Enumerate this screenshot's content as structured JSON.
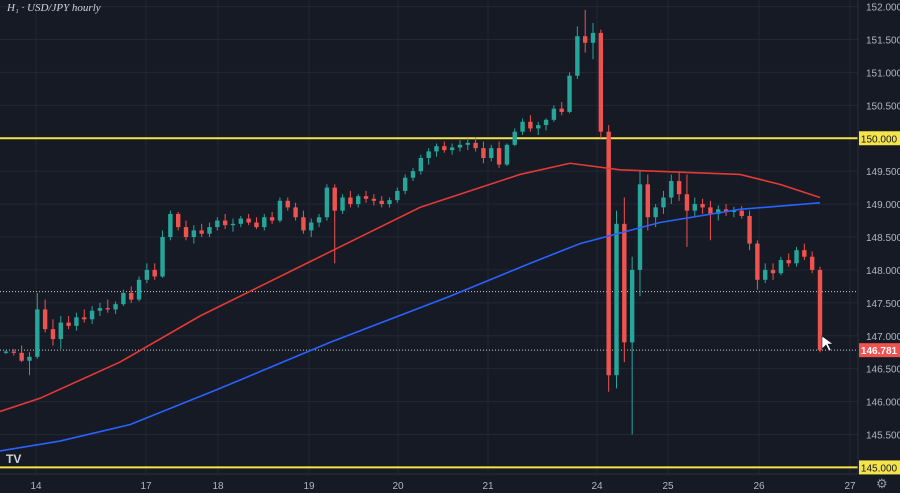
{
  "title": "H₁ · USD/JPY hourly",
  "logo_text": "TV",
  "settings_icon": "gear-icon",
  "colors": {
    "background": "#161a25",
    "grid": "#232734",
    "axis_text": "#b2b5be",
    "up": "#26a69a",
    "down": "#ef5350",
    "ma_red": "#e53935",
    "ma_blue": "#2962ff",
    "level": "#f5e34a",
    "price_tag": "#ef5350"
  },
  "chart_data": {
    "type": "candlestick",
    "title": "H₁ · USD/JPY hourly",
    "ylim": [
      144.9,
      152.1
    ],
    "y_ticks": [
      "145.000",
      "145.500",
      "146.000",
      "146.500",
      "147.000",
      "147.500",
      "148.000",
      "148.500",
      "149.000",
      "149.500",
      "150.000",
      "150.500",
      "151.000",
      "151.500",
      "152.000"
    ],
    "x_ticks": [
      "14",
      "17",
      "18",
      "19",
      "20",
      "21",
      "24",
      "25",
      "26",
      "27"
    ],
    "horizontal_levels": [
      {
        "value": 150.0,
        "label": "150.000"
      },
      {
        "value": 145.0,
        "label": "145.000"
      }
    ],
    "dotted_levels": [
      147.67,
      146.781
    ],
    "last_price": {
      "value": 146.781,
      "label": "146.781"
    },
    "series": [
      {
        "kind": "line",
        "color": "red",
        "points": [
          [
            0,
            145.85
          ],
          [
            40,
            146.05
          ],
          [
            120,
            146.6
          ],
          [
            200,
            147.3
          ],
          [
            300,
            148.05
          ],
          [
            420,
            148.95
          ],
          [
            520,
            149.45
          ],
          [
            570,
            149.62
          ],
          [
            620,
            149.52
          ],
          [
            740,
            149.45
          ],
          [
            780,
            149.3
          ],
          [
            820,
            149.1
          ]
        ]
      },
      {
        "kind": "line",
        "color": "blue",
        "points": [
          [
            0,
            145.25
          ],
          [
            60,
            145.4
          ],
          [
            130,
            145.65
          ],
          [
            220,
            146.2
          ],
          [
            330,
            146.9
          ],
          [
            450,
            147.6
          ],
          [
            530,
            148.1
          ],
          [
            580,
            148.4
          ],
          [
            660,
            148.72
          ],
          [
            740,
            148.92
          ],
          [
            820,
            149.02
          ]
        ]
      }
    ],
    "candles": [
      [
        146.74,
        146.78,
        146.72,
        146.76
      ],
      [
        146.76,
        146.8,
        146.7,
        146.74
      ],
      [
        146.74,
        146.85,
        146.6,
        146.62
      ],
      [
        146.62,
        146.75,
        146.4,
        146.68
      ],
      [
        146.68,
        147.65,
        146.65,
        147.4
      ],
      [
        147.4,
        147.55,
        147.05,
        147.1
      ],
      [
        147.1,
        147.25,
        146.85,
        146.95
      ],
      [
        146.95,
        147.3,
        146.8,
        147.2
      ],
      [
        147.2,
        147.3,
        147.1,
        147.15
      ],
      [
        147.15,
        147.35,
        147.08,
        147.28
      ],
      [
        147.28,
        147.4,
        147.2,
        147.25
      ],
      [
        147.25,
        147.45,
        147.18,
        147.38
      ],
      [
        147.38,
        147.5,
        147.3,
        147.42
      ],
      [
        147.42,
        147.55,
        147.35,
        147.4
      ],
      [
        147.4,
        147.52,
        147.33,
        147.48
      ],
      [
        147.48,
        147.7,
        147.45,
        147.65
      ],
      [
        147.65,
        147.75,
        147.5,
        147.55
      ],
      [
        147.55,
        147.9,
        147.52,
        147.85
      ],
      [
        147.85,
        148.1,
        147.8,
        148.0
      ],
      [
        148.0,
        148.1,
        147.85,
        147.9
      ],
      [
        147.9,
        148.6,
        147.88,
        148.5
      ],
      [
        148.5,
        148.9,
        148.45,
        148.85
      ],
      [
        148.85,
        148.88,
        148.6,
        148.65
      ],
      [
        148.65,
        148.75,
        148.45,
        148.5
      ],
      [
        148.5,
        148.68,
        148.4,
        148.6
      ],
      [
        148.6,
        148.7,
        148.5,
        148.55
      ],
      [
        148.55,
        148.72,
        148.5,
        148.65
      ],
      [
        148.65,
        148.8,
        148.6,
        148.75
      ],
      [
        148.75,
        148.85,
        148.62,
        148.68
      ],
      [
        148.68,
        148.78,
        148.58,
        148.7
      ],
      [
        148.7,
        148.82,
        148.65,
        148.78
      ],
      [
        148.78,
        148.85,
        148.68,
        148.72
      ],
      [
        148.72,
        148.8,
        148.62,
        148.65
      ],
      [
        148.65,
        148.85,
        148.6,
        148.8
      ],
      [
        148.8,
        148.88,
        148.7,
        148.75
      ],
      [
        148.75,
        149.1,
        148.72,
        149.05
      ],
      [
        149.05,
        149.1,
        148.9,
        148.95
      ],
      [
        148.95,
        149.02,
        148.75,
        148.8
      ],
      [
        148.8,
        148.9,
        148.55,
        148.6
      ],
      [
        148.6,
        148.78,
        148.5,
        148.72
      ],
      [
        148.72,
        148.85,
        148.65,
        148.8
      ],
      [
        148.8,
        149.3,
        148.75,
        149.25
      ],
      [
        149.25,
        149.3,
        148.1,
        148.9
      ],
      [
        148.9,
        149.15,
        148.85,
        149.1
      ],
      [
        149.1,
        149.2,
        148.95,
        149.0
      ],
      [
        149.0,
        149.15,
        148.95,
        149.12
      ],
      [
        149.12,
        149.2,
        149.02,
        149.08
      ],
      [
        149.08,
        149.15,
        148.98,
        149.05
      ],
      [
        149.05,
        149.12,
        148.95,
        149.0
      ],
      [
        149.0,
        149.1,
        148.95,
        149.06
      ],
      [
        149.06,
        149.25,
        149.02,
        149.2
      ],
      [
        149.2,
        149.45,
        149.15,
        149.4
      ],
      [
        149.4,
        149.55,
        149.35,
        149.5
      ],
      [
        149.5,
        149.75,
        149.45,
        149.7
      ],
      [
        149.7,
        149.85,
        149.6,
        149.8
      ],
      [
        149.8,
        149.92,
        149.72,
        149.88
      ],
      [
        149.88,
        149.95,
        149.78,
        149.82
      ],
      [
        149.82,
        149.92,
        149.75,
        149.86
      ],
      [
        149.86,
        149.97,
        149.8,
        149.9
      ],
      [
        149.9,
        150.0,
        149.82,
        149.93
      ],
      [
        149.93,
        150.02,
        149.8,
        149.85
      ],
      [
        149.85,
        149.95,
        149.62,
        149.7
      ],
      [
        149.7,
        149.9,
        149.65,
        149.85
      ],
      [
        149.85,
        149.95,
        149.55,
        149.6
      ],
      [
        149.6,
        149.92,
        149.58,
        149.9
      ],
      [
        149.9,
        150.15,
        149.88,
        150.1
      ],
      [
        150.1,
        150.3,
        150.05,
        150.25
      ],
      [
        150.25,
        150.35,
        150.1,
        150.15
      ],
      [
        150.15,
        150.25,
        150.05,
        150.2
      ],
      [
        150.2,
        150.3,
        150.12,
        150.28
      ],
      [
        150.28,
        150.5,
        150.25,
        150.45
      ],
      [
        150.45,
        150.55,
        150.35,
        150.4
      ],
      [
        150.4,
        151.0,
        150.38,
        150.95
      ],
      [
        150.95,
        151.7,
        150.9,
        151.55
      ],
      [
        151.55,
        151.95,
        151.3,
        151.45
      ],
      [
        151.45,
        151.75,
        151.2,
        151.6
      ],
      [
        151.6,
        151.65,
        150.0,
        150.1
      ],
      [
        150.1,
        150.2,
        146.15,
        146.4
      ],
      [
        146.4,
        148.9,
        146.2,
        148.7
      ],
      [
        148.7,
        149.1,
        146.6,
        146.9
      ],
      [
        146.9,
        148.2,
        145.5,
        148.0
      ],
      [
        148.0,
        149.5,
        147.6,
        149.3
      ],
      [
        149.3,
        149.45,
        148.6,
        148.8
      ],
      [
        148.8,
        149.0,
        148.65,
        148.95
      ],
      [
        148.95,
        149.2,
        148.85,
        149.1
      ],
      [
        149.1,
        149.45,
        149.0,
        149.35
      ],
      [
        149.35,
        149.5,
        149.05,
        149.15
      ],
      [
        149.15,
        149.45,
        148.35,
        148.9
      ],
      [
        148.9,
        149.1,
        148.8,
        149.0
      ],
      [
        149.0,
        149.08,
        148.85,
        148.95
      ],
      [
        148.95,
        149.05,
        148.45,
        148.85
      ],
      [
        148.85,
        148.98,
        148.75,
        148.92
      ],
      [
        148.92,
        149.0,
        148.82,
        148.88
      ],
      [
        148.88,
        148.96,
        148.8,
        148.9
      ],
      [
        148.9,
        148.97,
        148.78,
        148.82
      ],
      [
        148.82,
        148.9,
        148.3,
        148.4
      ],
      [
        148.4,
        148.45,
        147.7,
        147.85
      ],
      [
        147.85,
        148.1,
        147.8,
        148.0
      ],
      [
        148.0,
        148.1,
        147.85,
        147.95
      ],
      [
        147.95,
        148.2,
        147.92,
        148.15
      ],
      [
        148.15,
        148.25,
        148.05,
        148.1
      ],
      [
        148.1,
        148.35,
        148.05,
        148.3
      ],
      [
        148.3,
        148.4,
        148.15,
        148.2
      ],
      [
        148.2,
        148.28,
        147.95,
        148.0
      ],
      [
        148.0,
        148.05,
        146.75,
        146.78
      ]
    ]
  }
}
